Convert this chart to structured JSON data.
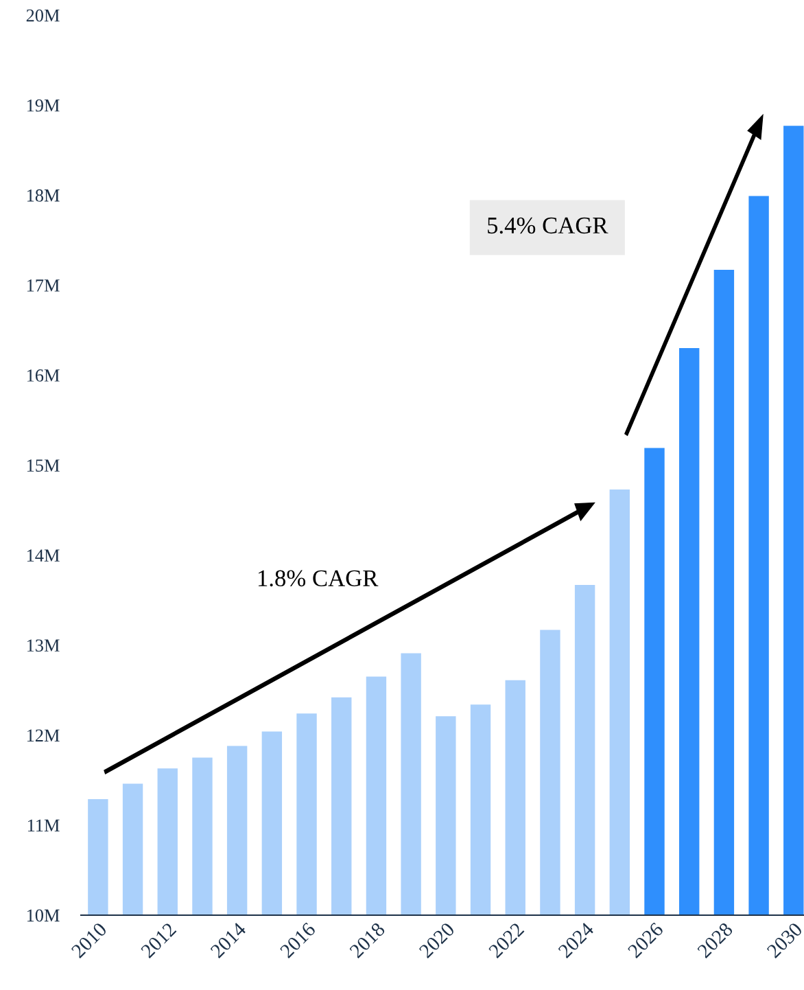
{
  "chart_data": {
    "type": "bar",
    "categories": [
      "2010",
      null,
      "2012",
      null,
      "2014",
      null,
      "2016",
      null,
      "2018",
      null,
      "2020",
      null,
      "2022",
      null,
      "2024",
      null,
      "2026",
      null,
      "2028",
      null,
      "2030"
    ],
    "values": [
      11.29,
      11.46,
      11.63,
      11.75,
      11.88,
      12.04,
      12.24,
      12.42,
      12.65,
      12.91,
      12.21,
      12.34,
      12.61,
      13.17,
      13.67,
      14.73,
      15.19,
      16.3,
      17.17,
      17.99,
      18.77
    ],
    "colors": [
      "#aad0fb",
      "#aad0fb",
      "#aad0fb",
      "#aad0fb",
      "#aad0fb",
      "#aad0fb",
      "#aad0fb",
      "#aad0fb",
      "#aad0fb",
      "#aad0fb",
      "#aad0fb",
      "#aad0fb",
      "#aad0fb",
      "#aad0fb",
      "#aad0fb",
      "#aad0fb",
      "#2f8ffd",
      "#2f8ffd",
      "#2f8ffd",
      "#2f8ffd",
      "#2f8ffd"
    ],
    "ylim": [
      10,
      20
    ],
    "yticks": [
      {
        "value": 10,
        "label": "10M"
      },
      {
        "value": 11,
        "label": "11M"
      },
      {
        "value": 12,
        "label": "12M"
      },
      {
        "value": 13,
        "label": "13M"
      },
      {
        "value": 14,
        "label": "14M"
      },
      {
        "value": 15,
        "label": "15M"
      },
      {
        "value": 16,
        "label": "16M"
      },
      {
        "value": 17,
        "label": "17M"
      },
      {
        "value": 18,
        "label": "18M"
      },
      {
        "value": 19,
        "label": "19M"
      },
      {
        "value": 20,
        "label": "20M"
      }
    ],
    "annotations": [
      "1.8% CAGR",
      "5.4% CAGR"
    ],
    "grid": false,
    "legend": false
  }
}
